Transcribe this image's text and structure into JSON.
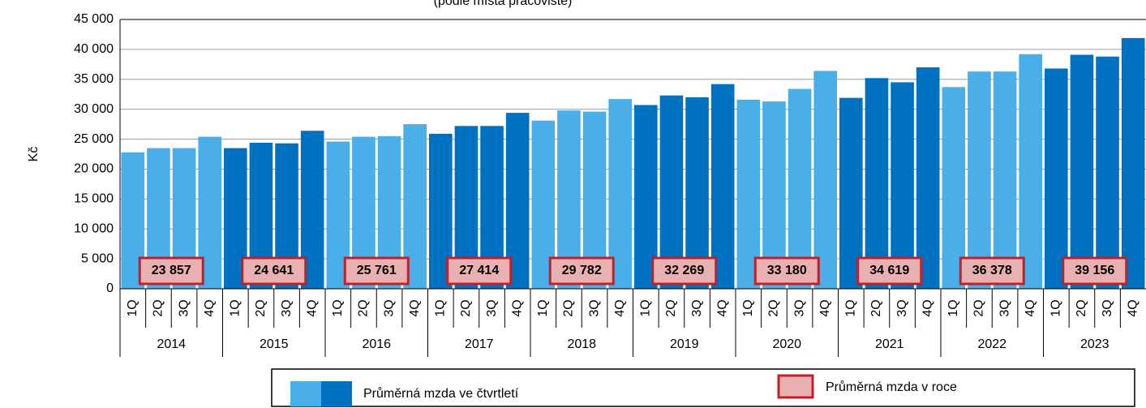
{
  "chart_data": {
    "type": "bar",
    "subtitle": "(podle místa pracoviště)",
    "y_label": "Kč",
    "categories": [
      "1Q",
      "2Q",
      "3Q",
      "4Q",
      "1Q",
      "2Q",
      "3Q",
      "4Q",
      "1Q",
      "2Q",
      "3Q",
      "4Q",
      "1Q",
      "2Q",
      "3Q",
      "4Q",
      "1Q",
      "2Q",
      "3Q",
      "4Q",
      "1Q",
      "2Q",
      "3Q",
      "4Q",
      "1Q",
      "2Q",
      "3Q",
      "4Q",
      "1Q",
      "2Q",
      "3Q",
      "4Q",
      "1Q",
      "2Q",
      "3Q",
      "4Q",
      "1Q",
      "2Q",
      "3Q",
      "4Q"
    ],
    "years": [
      "2014",
      "2015",
      "2016",
      "2017",
      "2018",
      "2019",
      "2020",
      "2021",
      "2022",
      "2023"
    ],
    "series_name": "Průměrná mzda ve čtvrtletí",
    "values": [
      22800,
      23500,
      23500,
      25400,
      23500,
      24400,
      24300,
      26400,
      24600,
      25400,
      25500,
      27500,
      25900,
      27200,
      27200,
      29400,
      28100,
      29800,
      29600,
      31700,
      30700,
      32300,
      32000,
      34200,
      31600,
      31300,
      33400,
      36400,
      31900,
      35200,
      34500,
      37000,
      33700,
      36300,
      36300,
      39200,
      36800,
      39100,
      38800,
      41900
    ],
    "colors": [
      "#4aaee8",
      "#0070c0"
    ],
    "annual": {
      "name": "Průměrná mzda v roce",
      "color": "#e8b0b0",
      "border": "#c0202a",
      "values": [
        23857,
        24641,
        25761,
        27414,
        29782,
        32269,
        33180,
        34619,
        36378,
        39156
      ],
      "value_labels": [
        "23 857",
        "24 641",
        "25 761",
        "27 414",
        "29 782",
        "32 269",
        "33 180",
        "34 619",
        "36 378",
        "39 156"
      ]
    },
    "ylim": [
      0,
      45000
    ],
    "yticks": [
      0,
      {
        "value": 5000,
        "label": "5 000"
      },
      {
        "value": 10000,
        "label": "10 000"
      },
      {
        "value": 15000,
        "label": "15 000"
      },
      {
        "value": 20000,
        "label": "20 000"
      },
      {
        "value": 25000,
        "label": "25 000"
      },
      {
        "value": 30000,
        "label": "30 000"
      },
      {
        "value": 35000,
        "label": "35 000"
      },
      {
        "value": 40000,
        "label": "40 000"
      },
      {
        "value": 45000,
        "label": "45 000"
      }
    ],
    "grid": true
  }
}
